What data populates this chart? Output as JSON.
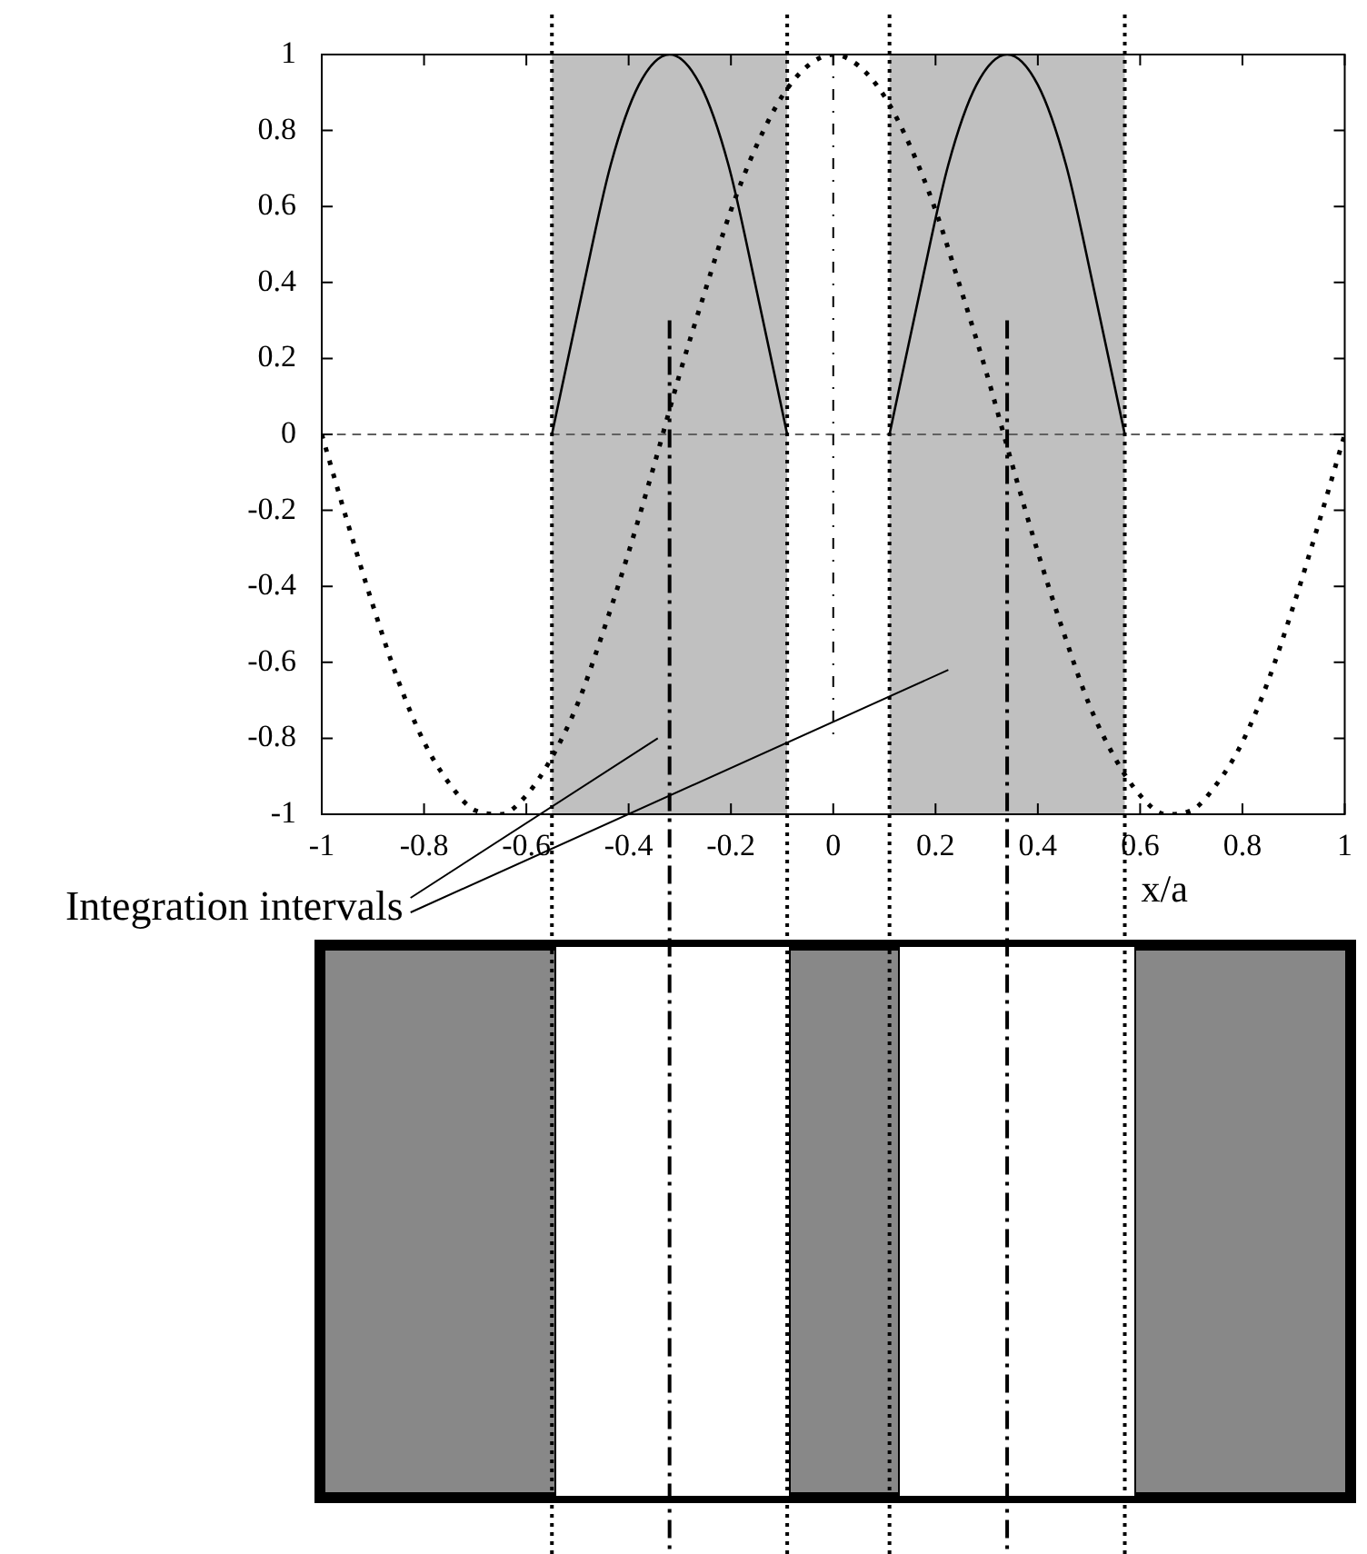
{
  "chart_data": {
    "type": "line",
    "xlabel": "x/a",
    "annotations": [
      "Integration intervals"
    ],
    "xlim": [
      -1,
      1
    ],
    "xticks": [
      -1,
      -0.8,
      -0.6,
      -0.4,
      -0.2,
      0,
      0.2,
      0.4,
      0.6,
      0.8,
      1
    ],
    "ylim": [
      -1,
      1
    ],
    "yticks": [
      -1,
      -0.8,
      -0.6,
      -0.4,
      -0.2,
      0,
      0.2,
      0.4,
      0.6,
      0.8,
      1
    ],
    "grid": false,
    "legend": false,
    "marker": "none",
    "series": [
      {
        "color": "#000000",
        "line_style": "dotted",
        "x": [
          -1,
          -0.95,
          -0.9,
          -0.85,
          -0.8,
          -0.75,
          -0.7,
          -0.65,
          -0.6,
          -0.55,
          -0.5,
          -0.45,
          -0.4,
          -0.35,
          -0.3,
          -0.25,
          -0.2,
          -0.15,
          -0.1,
          -0.05,
          0,
          0.05,
          0.1,
          0.15,
          0.2,
          0.25,
          0.3,
          0.35,
          0.4,
          0.45,
          0.5,
          0.55,
          0.6,
          0.65,
          0.7,
          0.75,
          0.8,
          0.85,
          0.9,
          0.95,
          1
        ],
        "values": [
          0,
          -0.23,
          -0.45,
          -0.65,
          -0.81,
          -0.92,
          -0.99,
          -1,
          -0.95,
          -0.85,
          -0.71,
          -0.52,
          -0.31,
          -0.08,
          0.16,
          0.38,
          0.59,
          0.76,
          0.89,
          0.97,
          1,
          0.97,
          0.89,
          0.76,
          0.59,
          0.38,
          0.16,
          -0.08,
          -0.31,
          -0.52,
          -0.71,
          -0.85,
          -0.95,
          -1,
          -0.99,
          -0.92,
          -0.81,
          -0.65,
          -0.45,
          -0.23,
          0
        ]
      },
      {
        "color": "#000000",
        "line_style": "solid",
        "x": [
          -0.55,
          -0.49,
          -0.435,
          -0.38,
          -0.32,
          -0.26,
          -0.205,
          -0.15,
          -0.09
        ],
        "values": [
          0,
          0.38,
          0.71,
          0.92,
          1,
          0.92,
          0.71,
          0.38,
          0
        ]
      },
      {
        "color": "#000000",
        "line_style": "solid",
        "x": [
          0.11,
          0.17,
          0.225,
          0.28,
          0.34,
          0.4,
          0.455,
          0.51,
          0.57
        ],
        "values": [
          0,
          0.38,
          0.71,
          0.92,
          1,
          0.92,
          0.71,
          0.38,
          0
        ]
      }
    ],
    "bands": [
      {
        "axis": "x",
        "from": -0.55,
        "to": -0.09,
        "color": "#c0c0c0"
      },
      {
        "axis": "x",
        "from": 0.11,
        "to": 0.57,
        "color": "#c0c0c0"
      }
    ],
    "ref_lines": [
      {
        "axis": "y",
        "value": 0,
        "line_style": "dashed",
        "color": "#606060"
      },
      {
        "axis": "x",
        "value": 0,
        "line_style": "dashed",
        "color": "#000000"
      },
      {
        "axis": "x",
        "value": -0.55,
        "line_style": "dotted",
        "color": "#000000"
      },
      {
        "axis": "x",
        "value": -0.09,
        "line_style": "dotted",
        "color": "#000000"
      },
      {
        "axis": "x",
        "value": 0.11,
        "line_style": "dotted",
        "color": "#000000"
      },
      {
        "axis": "x",
        "value": 0.57,
        "line_style": "dotted",
        "color": "#000000"
      },
      {
        "axis": "x",
        "value": -0.32,
        "line_style": "dashed",
        "color": "#000000"
      },
      {
        "axis": "x",
        "value": 0.34,
        "line_style": "dashed",
        "color": "#000000"
      }
    ]
  }
}
